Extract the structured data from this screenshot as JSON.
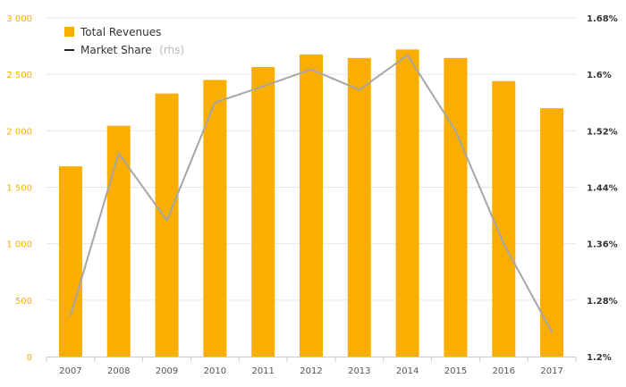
{
  "chart_data": {
    "type": "bar",
    "categories": [
      "2007",
      "2008",
      "2009",
      "2010",
      "2011",
      "2012",
      "2013",
      "2014",
      "2015",
      "2016",
      "2017"
    ],
    "series": [
      {
        "name": "Total Revenues",
        "type": "bar",
        "axis": "left",
        "color": "#f9ae00",
        "values": [
          1685,
          2045,
          2330,
          2450,
          2565,
          2675,
          2645,
          2720,
          2645,
          2440,
          2200
        ]
      },
      {
        "name": "Market Share",
        "name_note": "(rhs)",
        "type": "line",
        "axis": "right",
        "color": "#a6a6a6",
        "values": [
          1.258,
          1.488,
          1.393,
          1.56,
          1.583,
          1.607,
          1.578,
          1.627,
          1.52,
          1.36,
          1.235
        ]
      }
    ],
    "ylim_left": [
      0,
      3000
    ],
    "yticks_left": [
      "0",
      "500",
      "1 000",
      "1 500",
      "2 000",
      "2 500",
      "3 000"
    ],
    "ylim_right": [
      1.2,
      1.68
    ],
    "yticks_right": [
      "1.2%",
      "1.28%",
      "1.36%",
      "1.44%",
      "1.52%",
      "1.6%",
      "1.68%"
    ],
    "grid": true,
    "legend": "top-left",
    "left_tick_color": "#f9ae00",
    "grid_color": "#e6e6e6"
  }
}
